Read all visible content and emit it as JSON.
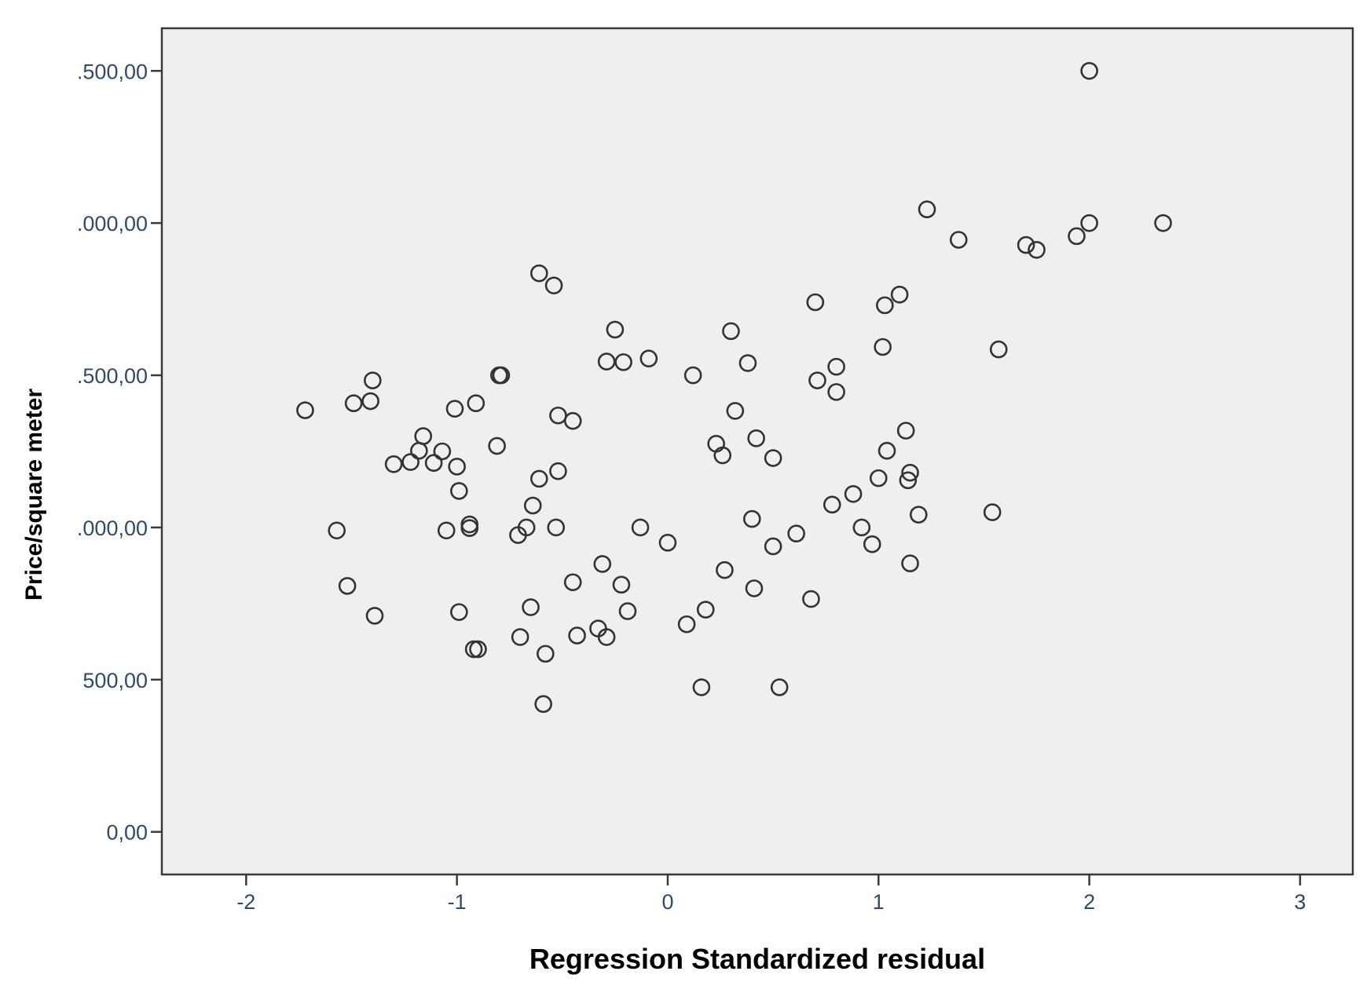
{
  "chart_data": {
    "type": "scatter",
    "title": "",
    "xlabel": "Regression Standardized residual",
    "ylabel": "Price/square  meter",
    "xlim": [
      -2.4,
      3.25
    ],
    "ylim": [
      -140,
      2640
    ],
    "xticks": [
      -2,
      -1,
      0,
      1,
      2,
      3
    ],
    "xtick_labels": [
      "-2",
      "-1",
      "0",
      "1",
      "2",
      "3"
    ],
    "yticks": [
      0,
      500,
      1000,
      1500,
      2000,
      2500
    ],
    "ytick_labels": [
      "0,00",
      "500,00",
      ".000,00",
      ".500,00",
      ".000,00",
      ".500,00"
    ],
    "grid": false,
    "legend": "none",
    "colors": {
      "plot_background": "#efefef",
      "frame": "#3a3a3a",
      "marker": "#333333",
      "tick_text": "#2f4a6d"
    },
    "marker": "hollow-circle",
    "points": [
      {
        "x": -1.72,
        "y": 1385
      },
      {
        "x": -1.57,
        "y": 990
      },
      {
        "x": -1.52,
        "y": 808
      },
      {
        "x": -1.49,
        "y": 1408
      },
      {
        "x": -1.41,
        "y": 1415
      },
      {
        "x": -1.4,
        "y": 1483
      },
      {
        "x": -1.39,
        "y": 710
      },
      {
        "x": -1.3,
        "y": 1208
      },
      {
        "x": -1.22,
        "y": 1215
      },
      {
        "x": -1.16,
        "y": 1300
      },
      {
        "x": -1.18,
        "y": 1252
      },
      {
        "x": -1.11,
        "y": 1212
      },
      {
        "x": -1.07,
        "y": 1250
      },
      {
        "x": -1.05,
        "y": 990
      },
      {
        "x": -1.01,
        "y": 1390
      },
      {
        "x": -1.0,
        "y": 1200
      },
      {
        "x": -0.99,
        "y": 1120
      },
      {
        "x": -0.99,
        "y": 722
      },
      {
        "x": -0.94,
        "y": 1010
      },
      {
        "x": -0.94,
        "y": 998
      },
      {
        "x": -0.91,
        "y": 1408
      },
      {
        "x": -0.92,
        "y": 600
      },
      {
        "x": -0.9,
        "y": 600
      },
      {
        "x": -0.81,
        "y": 1268
      },
      {
        "x": -0.8,
        "y": 1500
      },
      {
        "x": -0.79,
        "y": 1500
      },
      {
        "x": -0.71,
        "y": 975
      },
      {
        "x": -0.7,
        "y": 640
      },
      {
        "x": -0.67,
        "y": 1000
      },
      {
        "x": -0.65,
        "y": 738
      },
      {
        "x": -0.64,
        "y": 1072
      },
      {
        "x": -0.61,
        "y": 1160
      },
      {
        "x": -0.61,
        "y": 1835
      },
      {
        "x": -0.58,
        "y": 585
      },
      {
        "x": -0.59,
        "y": 420
      },
      {
        "x": -0.54,
        "y": 1795
      },
      {
        "x": -0.53,
        "y": 1000
      },
      {
        "x": -0.52,
        "y": 1368
      },
      {
        "x": -0.52,
        "y": 1185
      },
      {
        "x": -0.45,
        "y": 1350
      },
      {
        "x": -0.45,
        "y": 820
      },
      {
        "x": -0.43,
        "y": 645
      },
      {
        "x": -0.33,
        "y": 668
      },
      {
        "x": -0.31,
        "y": 880
      },
      {
        "x": -0.29,
        "y": 1545
      },
      {
        "x": -0.29,
        "y": 640
      },
      {
        "x": -0.25,
        "y": 1650
      },
      {
        "x": -0.22,
        "y": 812
      },
      {
        "x": -0.21,
        "y": 1543
      },
      {
        "x": -0.19,
        "y": 725
      },
      {
        "x": -0.13,
        "y": 1000
      },
      {
        "x": -0.09,
        "y": 1555
      },
      {
        "x": 0.0,
        "y": 950
      },
      {
        "x": 0.09,
        "y": 682
      },
      {
        "x": 0.12,
        "y": 1500
      },
      {
        "x": 0.16,
        "y": 475
      },
      {
        "x": 0.18,
        "y": 730
      },
      {
        "x": 0.23,
        "y": 1275
      },
      {
        "x": 0.26,
        "y": 1237
      },
      {
        "x": 0.27,
        "y": 860
      },
      {
        "x": 0.3,
        "y": 1645
      },
      {
        "x": 0.32,
        "y": 1383
      },
      {
        "x": 0.38,
        "y": 1540
      },
      {
        "x": 0.4,
        "y": 1028
      },
      {
        "x": 0.41,
        "y": 800
      },
      {
        "x": 0.42,
        "y": 1293
      },
      {
        "x": 0.5,
        "y": 1228
      },
      {
        "x": 0.5,
        "y": 938
      },
      {
        "x": 0.53,
        "y": 475
      },
      {
        "x": 0.61,
        "y": 980
      },
      {
        "x": 0.68,
        "y": 765
      },
      {
        "x": 0.7,
        "y": 1740
      },
      {
        "x": 0.71,
        "y": 1483
      },
      {
        "x": 0.78,
        "y": 1075
      },
      {
        "x": 0.8,
        "y": 1528
      },
      {
        "x": 0.8,
        "y": 1445
      },
      {
        "x": 0.88,
        "y": 1110
      },
      {
        "x": 0.92,
        "y": 1000
      },
      {
        "x": 0.97,
        "y": 945
      },
      {
        "x": 1.0,
        "y": 1162
      },
      {
        "x": 1.02,
        "y": 1593
      },
      {
        "x": 1.03,
        "y": 1730
      },
      {
        "x": 1.04,
        "y": 1252
      },
      {
        "x": 1.1,
        "y": 1765
      },
      {
        "x": 1.13,
        "y": 1318
      },
      {
        "x": 1.14,
        "y": 1155
      },
      {
        "x": 1.15,
        "y": 1180
      },
      {
        "x": 1.15,
        "y": 882
      },
      {
        "x": 1.19,
        "y": 1042
      },
      {
        "x": 1.23,
        "y": 2045
      },
      {
        "x": 1.38,
        "y": 1945
      },
      {
        "x": 1.54,
        "y": 1050
      },
      {
        "x": 1.57,
        "y": 1585
      },
      {
        "x": 1.7,
        "y": 1928
      },
      {
        "x": 1.75,
        "y": 1912
      },
      {
        "x": 1.94,
        "y": 1957
      },
      {
        "x": 2.0,
        "y": 2500
      },
      {
        "x": 2.0,
        "y": 2000
      },
      {
        "x": 2.35,
        "y": 2000
      }
    ]
  }
}
